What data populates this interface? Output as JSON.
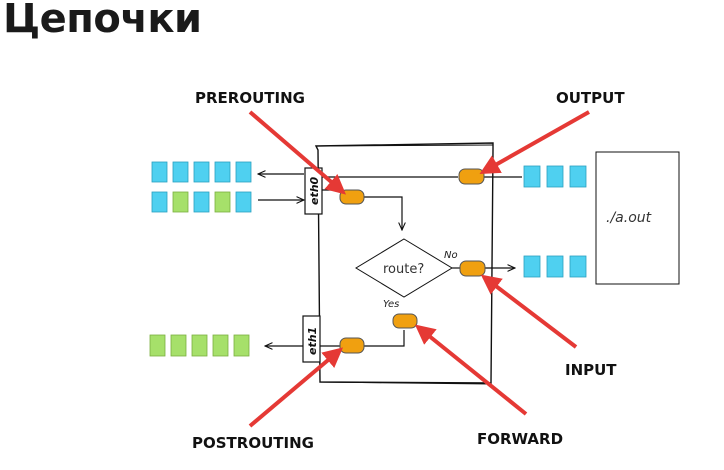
{
  "page": {
    "title": "Цепочки"
  },
  "diagram": {
    "labels": {
      "prerouting": "PREROUTING",
      "output": "OUTPUT",
      "input": "INPUT",
      "postrouting": "POSTROUTING",
      "forward": "FORWARD"
    },
    "interfaces": {
      "eth0": "eth0",
      "eth1": "eth1"
    },
    "decision": {
      "label": "route?",
      "no": "No",
      "yes": "Yes"
    },
    "process": {
      "label": "./a.out"
    },
    "colors": {
      "packet_blue": "#4fd0f0",
      "packet_green": "#a6e06a",
      "hook_orange": "#f0a010",
      "arrow_red": "#e53935",
      "line": "#111111"
    }
  }
}
